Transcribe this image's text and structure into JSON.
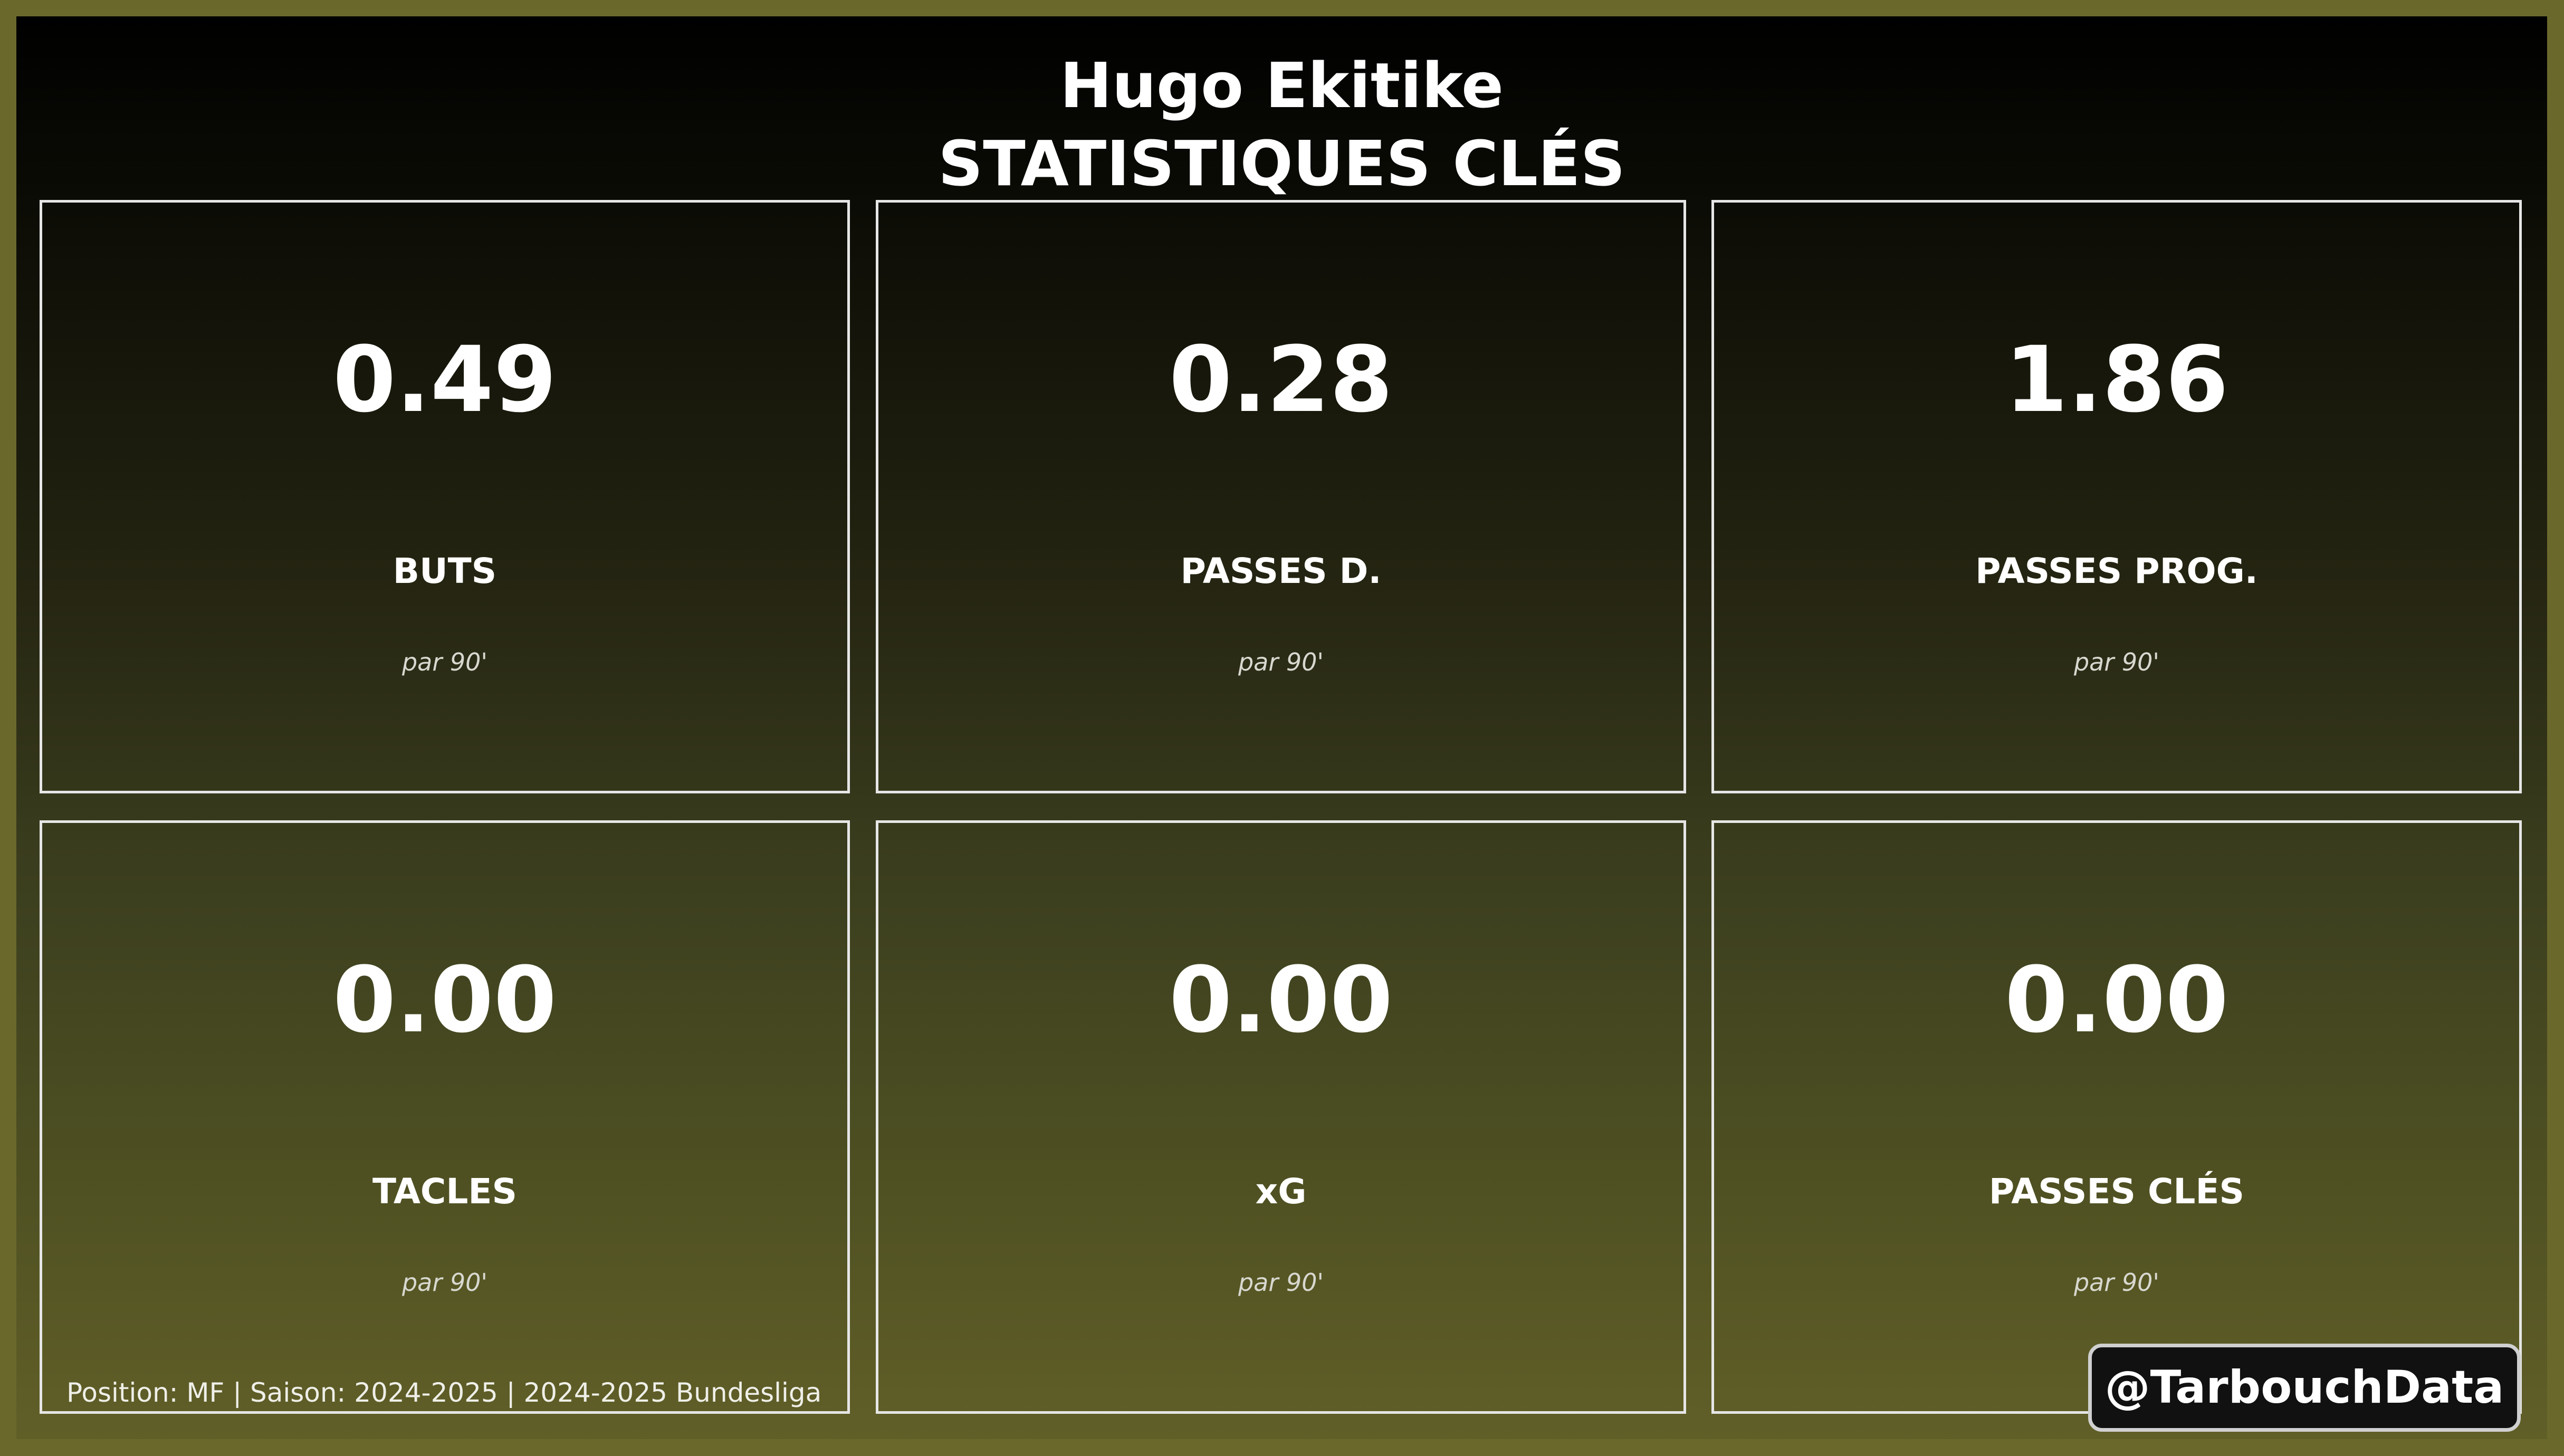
{
  "header": {
    "player_name": "Hugo Ekitike",
    "subtitle": "STATISTIQUES CLÉS"
  },
  "stats": [
    {
      "value": "0.49",
      "label": "BUTS",
      "unit": "par 90'"
    },
    {
      "value": "0.28",
      "label": "PASSES D.",
      "unit": "par 90'"
    },
    {
      "value": "1.86",
      "label": "PASSES PROG.",
      "unit": "par 90'"
    },
    {
      "value": "0.00",
      "label": "TACLES",
      "unit": "par 90'"
    },
    {
      "value": "0.00",
      "label": "xG",
      "unit": "par 90'"
    },
    {
      "value": "0.00",
      "label": "PASSES CLÉS",
      "unit": "par 90'"
    }
  ],
  "footer": {
    "info": "Position: MF | Saison: 2024-2025 | 2024-2025 Bundesliga"
  },
  "watermark": {
    "handle": "@TarbouchData"
  },
  "colors": {
    "page_background": "#6b682c",
    "gradient_top": "#000000",
    "gradient_bottom": "#615f28",
    "card_border": "#e6e6e6",
    "text": "#ffffff"
  }
}
